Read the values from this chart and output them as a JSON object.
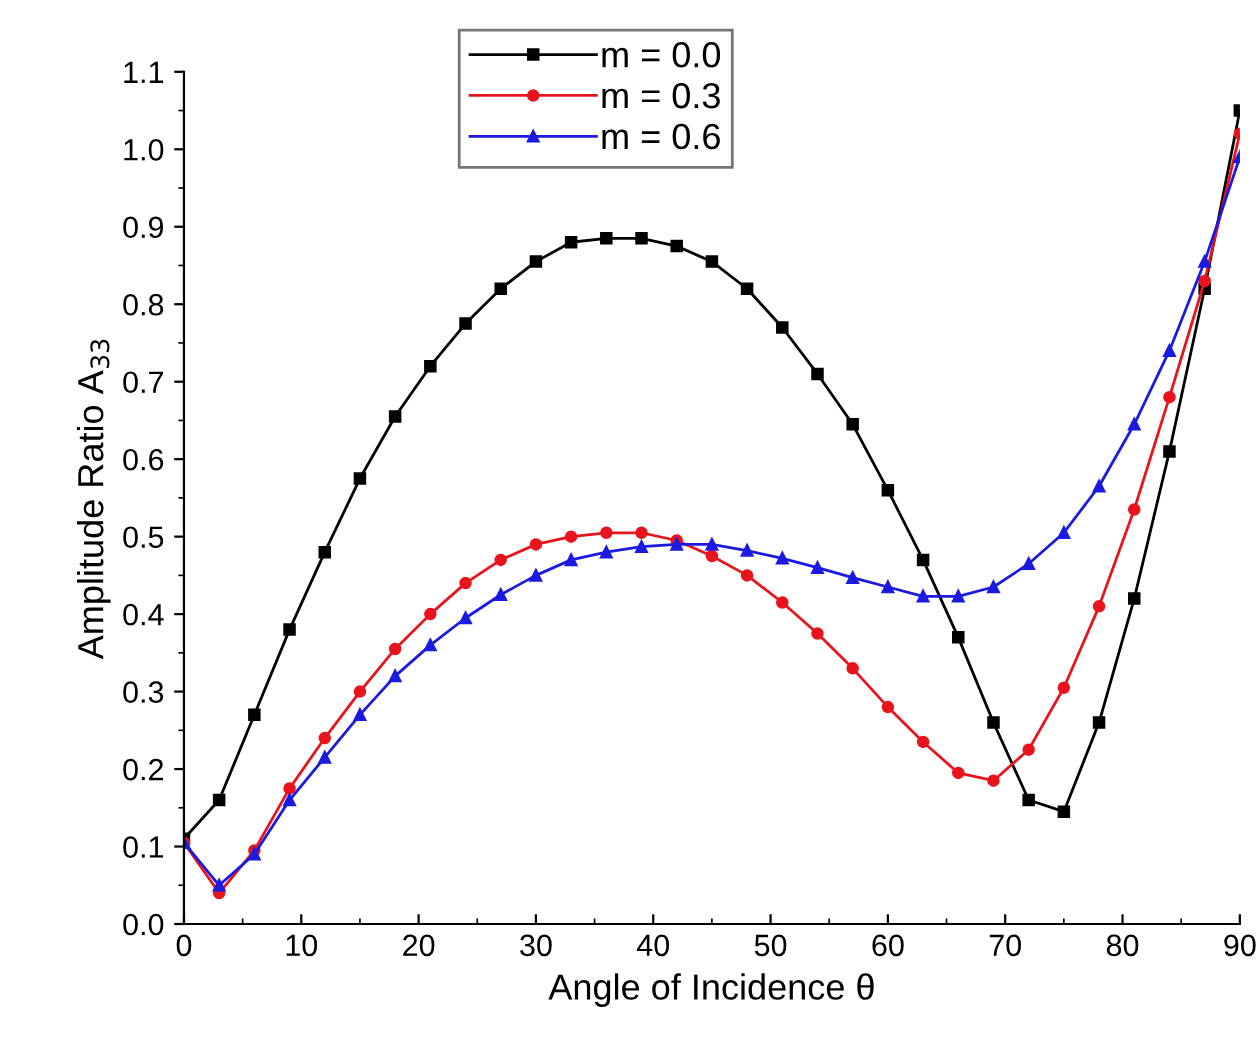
{
  "chart_data": {
    "type": "line",
    "xlabel": "Angle of Incidence θ",
    "ylabel": "Amplitude Ratio A$_{33}$",
    "x": [
      0,
      3,
      6,
      9,
      12,
      15,
      18,
      21,
      24,
      27,
      30,
      33,
      36,
      39,
      42,
      45,
      48,
      51,
      54,
      57,
      60,
      63,
      66,
      69,
      72,
      75,
      78,
      81,
      84,
      87,
      90
    ],
    "series": [
      {
        "name": "m = 0.0",
        "color": "#000000",
        "marker": "square",
        "values": [
          0.11,
          0.16,
          0.27,
          0.38,
          0.48,
          0.575,
          0.655,
          0.72,
          0.775,
          0.82,
          0.855,
          0.88,
          0.885,
          0.885,
          0.875,
          0.855,
          0.82,
          0.77,
          0.71,
          0.645,
          0.56,
          0.47,
          0.37,
          0.26,
          0.16,
          0.145,
          0.26,
          0.42,
          0.61,
          0.82,
          1.05
        ]
      },
      {
        "name": "m = 0.3",
        "color": "#e8141c",
        "marker": "circle",
        "values": [
          0.105,
          0.04,
          0.095,
          0.175,
          0.24,
          0.3,
          0.355,
          0.4,
          0.44,
          0.47,
          0.49,
          0.5,
          0.505,
          0.505,
          0.495,
          0.475,
          0.45,
          0.415,
          0.375,
          0.33,
          0.28,
          0.235,
          0.195,
          0.185,
          0.225,
          0.305,
          0.41,
          0.535,
          0.68,
          0.83,
          1.02
        ]
      },
      {
        "name": "m = 0.6",
        "color": "#1a1ae0",
        "marker": "triangle",
        "values": [
          0.105,
          0.05,
          0.09,
          0.16,
          0.215,
          0.27,
          0.32,
          0.36,
          0.395,
          0.425,
          0.45,
          0.47,
          0.48,
          0.487,
          0.49,
          0.49,
          0.482,
          0.472,
          0.46,
          0.447,
          0.435,
          0.423,
          0.423,
          0.435,
          0.465,
          0.505,
          0.565,
          0.645,
          0.74,
          0.855,
          0.99
        ]
      }
    ],
    "xlim": [
      0,
      90
    ],
    "xticks": [
      0,
      10,
      20,
      30,
      40,
      50,
      60,
      70,
      80,
      90
    ],
    "ylim": [
      0,
      1.1
    ],
    "yticks": [
      {
        "value": 0,
        "label": "0.0"
      },
      0.1,
      0.2,
      0.3,
      0.4,
      0.5,
      0.6,
      0.7,
      0.8,
      0.9,
      {
        "value": 1,
        "label": "1.0"
      },
      1.1
    ],
    "legend": "top",
    "grid": false,
    "line_style": "solid"
  }
}
